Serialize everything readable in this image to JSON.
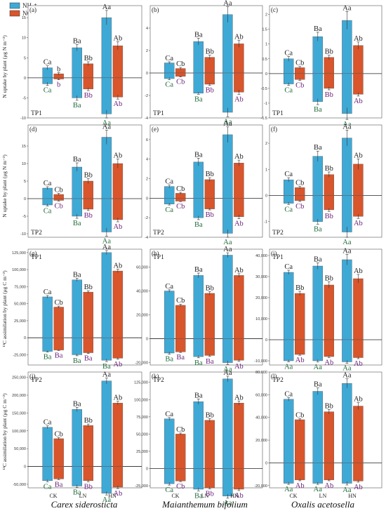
{
  "legend": [
    {
      "name": "NH₄⁺",
      "color": "#3fa9d6"
    },
    {
      "name": "NO₃⁻",
      "color": "#d9552b"
    }
  ],
  "y_labels": {
    "row1": "N uptake by plant (μg N m⁻²)",
    "row2": "N uptake by plant (μg N m⁻²)",
    "row3": "¹³C assimilation by plant (μg C m⁻²)",
    "row4": "¹³C assimilation by plant (μg C m⁻²)"
  },
  "x_categories": [
    "CK",
    "LN",
    "HN"
  ],
  "species": [
    "Carex siderosticta",
    "Maianthemum bifolium",
    "Oxalis acetosella"
  ],
  "chart_data": [
    {
      "panel": "(a)",
      "tp": "TP1",
      "type": "bar",
      "ylim": [
        -10,
        18
      ],
      "ticks": [
        -10,
        -5,
        0,
        5,
        10,
        15
      ],
      "series": [
        {
          "name": "NH₄⁺",
          "pos": [
            2.5,
            7.5,
            15.0
          ],
          "pos_err": [
            0.5,
            0.8,
            1.8
          ],
          "neg": [
            -1.5,
            -5.0,
            -9.0
          ],
          "neg_err": [
            0.4,
            0.6,
            1.0
          ]
        },
        {
          "name": "NO₃⁻",
          "pos": [
            1.0,
            3.5,
            8.0
          ],
          "pos_err": [
            0.3,
            0.5,
            1.0
          ],
          "neg": [
            -0.3,
            -2.8,
            -4.8
          ],
          "neg_err": [
            0.2,
            0.4,
            0.5
          ]
        }
      ],
      "labels": {
        "top": [
          [
            "Ca",
            "b"
          ],
          [
            "Ba",
            "Bb"
          ],
          [
            "Aa",
            "Ab"
          ]
        ],
        "bottom": [
          [
            "Ca",
            "b"
          ],
          [
            "Ba",
            "Bb"
          ],
          [
            "Aa",
            "Ab"
          ]
        ]
      }
    },
    {
      "panel": "(b)",
      "tp": "TP1",
      "type": "bar",
      "ylim": [
        -4,
        6
      ],
      "ticks": [
        -4,
        -2,
        0,
        2,
        4
      ],
      "series": [
        {
          "name": "NH₄⁺",
          "pos": [
            0.9,
            2.8,
            5.2
          ],
          "pos_err": [
            0.1,
            0.3,
            0.7
          ],
          "neg": [
            -0.5,
            -1.8,
            -3.5
          ],
          "neg_err": [
            0.1,
            0.1,
            0.4
          ]
        },
        {
          "name": "NO₃⁻",
          "pos": [
            0.4,
            1.4,
            2.6
          ],
          "pos_err": [
            0.1,
            0.2,
            0.3
          ],
          "neg": [
            -0.3,
            -1.0,
            -1.7
          ],
          "neg_err": [
            0.05,
            0.1,
            0.2
          ]
        }
      ],
      "labels": {
        "top": [
          [
            "Ca",
            "Cb"
          ],
          [
            "Ba",
            "Bb"
          ],
          [
            "Aa",
            "Ab"
          ]
        ],
        "bottom": [
          [
            "Ca",
            "Cb"
          ],
          [
            "Ba",
            "Bb"
          ],
          [
            "Aa",
            "Ab"
          ]
        ]
      }
    },
    {
      "panel": "(c)",
      "tp": "TP1",
      "type": "bar",
      "ylim": [
        -1.5,
        2.3
      ],
      "ticks": [
        -1.5,
        -1.0,
        -0.5,
        0.0,
        0.5,
        1.0,
        1.5,
        2.0
      ],
      "series": [
        {
          "name": "NH₄⁺",
          "pos": [
            0.5,
            1.25,
            1.8
          ],
          "pos_err": [
            0.08,
            0.15,
            0.3
          ],
          "neg": [
            -0.35,
            -0.95,
            -1.35
          ],
          "neg_err": [
            0.05,
            0.1,
            0.2
          ]
        },
        {
          "name": "NO₃⁻",
          "pos": [
            0.2,
            0.55,
            0.95
          ],
          "pos_err": [
            0.04,
            0.07,
            0.12
          ],
          "neg": [
            -0.2,
            -0.5,
            -0.7
          ],
          "neg_err": [
            0.03,
            0.05,
            0.06
          ]
        }
      ],
      "labels": {
        "top": [
          [
            "Ca",
            "Cb"
          ],
          [
            "Ba",
            "Bb"
          ],
          [
            "Aa",
            "Ab"
          ]
        ],
        "bottom": [
          [
            "Ca",
            "Cb"
          ],
          [
            "Ba",
            "Bb"
          ],
          [
            "Aa",
            "Ab"
          ]
        ]
      }
    },
    {
      "panel": "(d)",
      "tp": "TP2",
      "type": "bar",
      "ylim": [
        -11,
        21
      ],
      "ticks": [
        -10,
        -5,
        0,
        5,
        10,
        15
      ],
      "series": [
        {
          "name": "NH₄⁺",
          "pos": [
            3.0,
            9.0,
            17.5
          ],
          "pos_err": [
            0.4,
            1.2,
            2.0
          ],
          "neg": [
            -1.8,
            -5.0,
            -9.5
          ],
          "neg_err": [
            0.3,
            0.6,
            1.2
          ]
        },
        {
          "name": "NO₃⁻",
          "pos": [
            1.2,
            5.0,
            10.0
          ],
          "pos_err": [
            0.3,
            0.7,
            1.3
          ],
          "neg": [
            -0.5,
            -3.0,
            -6.0
          ],
          "neg_err": [
            0.2,
            0.4,
            0.6
          ]
        }
      ],
      "labels": {
        "top": [
          [
            "Ca",
            "Cb"
          ],
          [
            "Ba",
            "Bb"
          ],
          [
            "Aa",
            "Ab"
          ]
        ],
        "bottom": [
          [
            "Ca",
            "Cb"
          ],
          [
            "Ba",
            "Bb"
          ],
          [
            "Aa",
            "Ab"
          ]
        ]
      }
    },
    {
      "panel": "(e)",
      "tp": "TP2",
      "type": "bar",
      "ylim": [
        -4,
        7.5
      ],
      "ticks": [
        -4,
        -2,
        0,
        2,
        4,
        6
      ],
      "series": [
        {
          "name": "NH₄⁺",
          "pos": [
            1.2,
            3.7,
            6.5
          ],
          "pos_err": [
            0.15,
            0.4,
            0.8
          ],
          "neg": [
            -0.6,
            -2.0,
            -3.6
          ],
          "neg_err": [
            0.1,
            0.2,
            0.4
          ]
        },
        {
          "name": "NO₃⁻",
          "pos": [
            0.5,
            1.9,
            3.6
          ],
          "pos_err": [
            0.1,
            0.2,
            0.3
          ],
          "neg": [
            -0.3,
            -1.1,
            -1.9
          ],
          "neg_err": [
            0.05,
            0.1,
            0.2
          ]
        }
      ],
      "labels": {
        "top": [
          [
            "Ca",
            "Cb"
          ],
          [
            "Ba",
            "Bb"
          ],
          [
            "Aa",
            "Ab"
          ]
        ],
        "bottom": [
          [
            "Ca",
            "Cb"
          ],
          [
            "Ba",
            "Bb"
          ],
          [
            "Aa",
            "Ab"
          ]
        ]
      }
    },
    {
      "panel": "(f)",
      "tp": "TP2",
      "type": "bar",
      "ylim": [
        -1.6,
        2.7
      ],
      "ticks": [
        -1,
        0,
        1,
        2
      ],
      "series": [
        {
          "name": "NH₄⁺",
          "pos": [
            0.6,
            1.5,
            2.2
          ],
          "pos_err": [
            0.08,
            0.2,
            0.3
          ],
          "neg": [
            -0.3,
            -1.0,
            -1.4
          ],
          "neg_err": [
            0.05,
            0.1,
            0.2
          ]
        },
        {
          "name": "NO₃⁻",
          "pos": [
            0.3,
            0.8,
            1.2
          ],
          "pos_err": [
            0.05,
            0.1,
            0.2
          ],
          "neg": [
            -0.2,
            -0.55,
            -0.8
          ],
          "neg_err": [
            0.03,
            0.06,
            0.08
          ]
        }
      ],
      "labels": {
        "top": [
          [
            "Ca",
            "Cb"
          ],
          [
            "Ba",
            "Bb"
          ],
          [
            "Aa",
            "Ab"
          ]
        ],
        "bottom": [
          [
            "Ca",
            "Cb"
          ],
          [
            "Ba",
            "Bb"
          ],
          [
            "Aa",
            "Ab"
          ]
        ]
      }
    },
    {
      "panel": "(g)",
      "tp": "TP1",
      "type": "bar",
      "ylim": [
        -40000,
        130000
      ],
      "ticks": [
        -25000,
        0,
        25000,
        50000,
        75000,
        100000,
        125000
      ],
      "series": [
        {
          "name": "NH₄⁺",
          "pos": [
            60000,
            85000,
            125000
          ],
          "pos_err": [
            2000,
            2500,
            3000
          ],
          "neg": [
            -20000,
            -25000,
            -33000
          ],
          "neg_err": [
            1000,
            1500,
            2000
          ]
        },
        {
          "name": "NO₃⁻",
          "pos": [
            45000,
            67000,
            98000
          ],
          "pos_err": [
            1500,
            2000,
            2500
          ],
          "neg": [
            -18000,
            -22000,
            -30000
          ],
          "neg_err": [
            800,
            1200,
            1500
          ]
        }
      ],
      "labels": {
        "top": [
          [
            "Ca",
            "Cb"
          ],
          [
            "Ba",
            "Bb"
          ],
          [
            "Aa",
            "Ab"
          ]
        ],
        "bottom": [
          [
            "Ba",
            "Ba"
          ],
          [
            "Ba",
            "Ba"
          ],
          [
            "Ba",
            "Ab"
          ]
        ]
      }
    },
    {
      "panel": "(h)",
      "tp": "TP1",
      "type": "bar",
      "ylim": [
        -22000,
        75000
      ],
      "ticks": [
        -20000,
        0,
        20000,
        40000,
        60000
      ],
      "series": [
        {
          "name": "NH₄⁺",
          "pos": [
            40000,
            53000,
            70000
          ],
          "pos_err": [
            1000,
            2000,
            2000
          ],
          "neg": [
            -12000,
            -15000,
            -20000
          ],
          "neg_err": [
            1000,
            1000,
            1500
          ]
        },
        {
          "name": "NO₃⁻",
          "pos": [
            28000,
            38000,
            53000
          ],
          "pos_err": [
            1000,
            1500,
            1500
          ],
          "neg": [
            -11000,
            -14000,
            -18000
          ],
          "neg_err": [
            500,
            800,
            1000
          ]
        }
      ],
      "labels": {
        "top": [
          [
            "Ca",
            "Cb"
          ],
          [
            "Ba",
            "Bb"
          ],
          [
            "Aa",
            "Ab"
          ]
        ],
        "bottom": [
          [
            "Ba",
            "Ba"
          ],
          [
            "Ba",
            "Ba"
          ],
          [
            "Aa",
            "Ab"
          ]
        ]
      }
    },
    {
      "panel": "(i)",
      "tp": "TP1",
      "type": "bar",
      "ylim": [
        -12000,
        43000
      ],
      "ticks": [
        -10000,
        0,
        10000,
        20000,
        30000,
        40000
      ],
      "series": [
        {
          "name": "NH₄⁺",
          "pos": [
            32000,
            35000,
            38000
          ],
          "pos_err": [
            1000,
            1500,
            2500
          ],
          "neg": [
            -10000,
            -10000,
            -10500
          ],
          "neg_err": [
            500,
            600,
            700
          ]
        },
        {
          "name": "NO₃⁻",
          "pos": [
            22000,
            26000,
            29000
          ],
          "pos_err": [
            1000,
            1500,
            2000
          ],
          "neg": [
            -7000,
            -8000,
            -8500
          ],
          "neg_err": [
            400,
            500,
            500
          ]
        }
      ],
      "labels": {
        "top": [
          [
            "Ca",
            "Bb"
          ],
          [
            "Ba",
            "Bb"
          ],
          [
            "Aa",
            "Ab"
          ]
        ],
        "bottom": [
          [
            "Aa",
            "Ab"
          ],
          [
            "Aa",
            "Ab"
          ],
          [
            "Aa",
            "Ab"
          ]
        ]
      }
    },
    {
      "panel": "(j)",
      "tp": "TP2",
      "type": "bar",
      "ylim": [
        -60000,
        265000
      ],
      "ticks": [
        -50000,
        0,
        50000,
        100000,
        150000,
        200000,
        250000
      ],
      "series": [
        {
          "name": "NH₄⁺",
          "pos": [
            110000,
            160000,
            240000
          ],
          "pos_err": [
            4000,
            6000,
            8000
          ],
          "neg": [
            -40000,
            -55000,
            -75000
          ],
          "neg_err": [
            3000,
            4000,
            5000
          ]
        },
        {
          "name": "NO₃⁻",
          "pos": [
            78000,
            115000,
            178000
          ],
          "pos_err": [
            3000,
            4000,
            5000
          ],
          "neg": [
            -35000,
            -40000,
            -58000
          ],
          "neg_err": [
            2000,
            3000,
            4000
          ]
        }
      ],
      "labels": {
        "top": [
          [
            "Ca",
            "Cb"
          ],
          [
            "Ba",
            "Bb"
          ],
          [
            "Aa",
            "Ab"
          ]
        ],
        "bottom": [
          [
            "Ca",
            "Ba"
          ],
          [
            "Ba",
            "Bb"
          ],
          [
            "Aa",
            "Ab"
          ]
        ]
      }
    },
    {
      "panel": "(k)",
      "tp": "TP2",
      "type": "bar",
      "ylim": [
        -28000,
        140000
      ],
      "ticks": [
        -25000,
        0,
        25000,
        50000,
        75000,
        100000,
        125000
      ],
      "series": [
        {
          "name": "NH₄⁺",
          "pos": [
            72000,
            97000,
            130000
          ],
          "pos_err": [
            2000,
            4000,
            4000
          ],
          "neg": [
            -22000,
            -30000,
            -40000
          ],
          "neg_err": [
            2000,
            2500,
            3000
          ]
        },
        {
          "name": "NO₃⁻",
          "pos": [
            50000,
            70000,
            95000
          ],
          "pos_err": [
            1500,
            2500,
            3000
          ],
          "neg": [
            -18000,
            -28000,
            -30000
          ],
          "neg_err": [
            1000,
            1500,
            2000
          ]
        }
      ],
      "labels": {
        "top": [
          [
            "Ca",
            "Cb"
          ],
          [
            "Ba",
            "Bb"
          ],
          [
            "Aa",
            "Ab"
          ]
        ],
        "bottom": [
          [
            "Ca",
            "Cb"
          ],
          [
            "Ba",
            "Bb"
          ],
          [
            "Aa",
            "Ab"
          ]
        ]
      }
    },
    {
      "panel": "(l)",
      "tp": "TP2",
      "type": "bar",
      "ylim": [
        -22000,
        80000
      ],
      "ticks": [
        -20000,
        0,
        20000,
        40000,
        60000,
        80000
      ],
      "series": [
        {
          "name": "NH₄⁺",
          "pos": [
            56000,
            63000,
            70000
          ],
          "pos_err": [
            1500,
            3000,
            4000
          ],
          "neg": [
            -18000,
            -18000,
            -18000
          ],
          "neg_err": [
            1000,
            1000,
            1500
          ]
        },
        {
          "name": "NO₃⁻",
          "pos": [
            38000,
            45000,
            50000
          ],
          "pos_err": [
            1000,
            2000,
            3000
          ],
          "neg": [
            -15000,
            -15000,
            -16000
          ],
          "neg_err": [
            800,
            800,
            1000
          ]
        }
      ],
      "labels": {
        "top": [
          [
            "Ca",
            "Cb"
          ],
          [
            "Ba",
            "Bb"
          ],
          [
            "Aa",
            "Ab"
          ]
        ],
        "bottom": [
          [
            "Aa",
            "Ab"
          ],
          [
            "Aa",
            "Ab"
          ],
          [
            "Aa",
            "Ab"
          ]
        ]
      }
    }
  ]
}
